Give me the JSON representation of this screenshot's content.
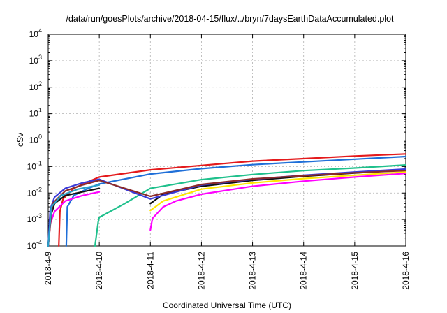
{
  "chart_data": {
    "type": "line",
    "title": "/data/run/goesPlots/archive/2018-04-15/flux/../bryn/7daysEarthDataAccumulated.plot",
    "xlabel": "Coordinated Universal Time (UTC)",
    "ylabel": "cSv",
    "y_scale": "log",
    "ylim": [
      0.0001,
      10000
    ],
    "xlim": [
      "2018-04-09",
      "2018-04-16"
    ],
    "x_tick_labels": [
      "2018-4-9",
      "2018-4-10",
      "2018-4-11",
      "2018-4-12",
      "2018-4-13",
      "2018-4-14",
      "2018-4-15",
      "2018-4-16"
    ],
    "y_tick_labels": [
      {
        "base": "10",
        "exp": "-4"
      },
      {
        "base": "10",
        "exp": "-3"
      },
      {
        "base": "10",
        "exp": "-2"
      },
      {
        "base": "10",
        "exp": "-1"
      },
      {
        "base": "10",
        "exp": "0"
      },
      {
        "base": "10",
        "exp": "1"
      },
      {
        "base": "10",
        "exp": "2"
      },
      {
        "base": "10",
        "exp": "3"
      },
      {
        "base": "10",
        "exp": "4"
      }
    ],
    "grid": true,
    "series": [
      {
        "color": "#e41a1c",
        "points": [
          [
            "2018-04-09 05:00",
            0.0001
          ],
          [
            "2018-04-09 05:30",
            0.002
          ],
          [
            "2018-04-09 07:00",
            0.006
          ],
          [
            "2018-04-09 12:00",
            0.015
          ],
          [
            "2018-04-09 18:00",
            0.025
          ],
          [
            "2018-04-10 00:00",
            0.04
          ],
          [
            "2018-04-11 00:00",
            0.075
          ],
          [
            "2018-04-12 00:00",
            0.11
          ],
          [
            "2018-04-13 00:00",
            0.16
          ],
          [
            "2018-04-14 00:00",
            0.2
          ],
          [
            "2018-04-15 00:00",
            0.25
          ],
          [
            "2018-04-16 00:00",
            0.3
          ]
        ]
      },
      {
        "color": "#1f6fd8",
        "points": [
          [
            "2018-04-09 08:30",
            0.0001
          ],
          [
            "2018-04-09 09:00",
            0.003
          ],
          [
            "2018-04-09 12:00",
            0.008
          ],
          [
            "2018-04-09 18:00",
            0.014
          ],
          [
            "2018-04-10 00:00",
            0.022
          ],
          [
            "2018-04-11 00:00",
            0.052
          ],
          [
            "2018-04-12 00:00",
            0.083
          ],
          [
            "2018-04-13 00:00",
            0.118
          ],
          [
            "2018-04-14 00:00",
            0.15
          ],
          [
            "2018-04-15 00:00",
            0.19
          ],
          [
            "2018-04-16 00:00",
            0.24
          ]
        ]
      },
      {
        "color": "#1fc08c",
        "points": [
          [
            "2018-04-09 22:00",
            0.0001
          ],
          [
            "2018-04-09 23:30",
            0.0008
          ],
          [
            "2018-04-10 00:00",
            0.0012
          ],
          [
            "2018-04-10 12:00",
            0.004
          ],
          [
            "2018-04-11 00:00",
            0.015
          ],
          [
            "2018-04-12 00:00",
            0.032
          ],
          [
            "2018-04-13 00:00",
            0.05
          ],
          [
            "2018-04-14 00:00",
            0.07
          ],
          [
            "2018-04-15 00:00",
            0.088
          ],
          [
            "2018-04-16 00:00",
            0.115
          ]
        ]
      },
      {
        "color": "#111111",
        "points": [
          [
            "2018-04-09 00:00",
            0.0001
          ],
          [
            "2018-04-09 01:00",
            0.0012
          ],
          [
            "2018-04-09 03:00",
            0.004
          ],
          [
            "2018-04-09 08:00",
            0.008
          ],
          [
            "2018-04-09 16:00",
            0.011
          ],
          [
            "2018-04-10 00:00",
            0.015
          ]
        ]
      },
      {
        "color": "#111111",
        "points": [
          [
            "2018-04-11 00:00",
            0.004
          ],
          [
            "2018-04-11 06:00",
            0.009
          ],
          [
            "2018-04-12 00:00",
            0.018
          ],
          [
            "2018-04-13 00:00",
            0.03
          ],
          [
            "2018-04-14 00:00",
            0.043
          ],
          [
            "2018-04-15 00:00",
            0.057
          ],
          [
            "2018-04-16 00:00",
            0.075
          ]
        ]
      },
      {
        "color": "#ff00ff",
        "points": [
          [
            "2018-04-09 00:00",
            0.0001
          ],
          [
            "2018-04-09 01:00",
            0.0007
          ],
          [
            "2018-04-09 03:00",
            0.002
          ],
          [
            "2018-04-09 08:00",
            0.005
          ],
          [
            "2018-04-09 16:00",
            0.008
          ],
          [
            "2018-04-10 00:00",
            0.011
          ]
        ]
      },
      {
        "color": "#ff00ff",
        "points": [
          [
            "2018-04-11 00:00",
            0.0004
          ],
          [
            "2018-04-11 01:00",
            0.0011
          ],
          [
            "2018-04-11 06:00",
            0.003
          ],
          [
            "2018-04-11 12:00",
            0.005
          ],
          [
            "2018-04-12 00:00",
            0.009
          ],
          [
            "2018-04-13 00:00",
            0.018
          ],
          [
            "2018-04-14 00:00",
            0.028
          ],
          [
            "2018-04-15 00:00",
            0.04
          ],
          [
            "2018-04-16 00:00",
            0.055
          ]
        ]
      },
      {
        "color": "#ffe600",
        "points": [
          [
            "2018-04-11 00:00",
            0.0022
          ],
          [
            "2018-04-11 06:00",
            0.005
          ],
          [
            "2018-04-12 00:00",
            0.014
          ],
          [
            "2018-04-13 00:00",
            0.024
          ],
          [
            "2018-04-14 00:00",
            0.035
          ],
          [
            "2018-04-15 00:00",
            0.047
          ],
          [
            "2018-04-16 00:00",
            0.062
          ]
        ]
      },
      {
        "color": "#3a3ad8",
        "points": [
          [
            "2018-04-09 00:00",
            0.0001
          ],
          [
            "2018-04-09 01:00",
            0.0025
          ],
          [
            "2018-04-09 03:00",
            0.007
          ],
          [
            "2018-04-09 08:00",
            0.015
          ],
          [
            "2018-04-09 16:00",
            0.024
          ],
          [
            "2018-04-10 00:00",
            0.033
          ],
          [
            "2018-04-11 00:00",
            0.006
          ],
          [
            "2018-04-12 00:00",
            0.02
          ],
          [
            "2018-04-13 00:00",
            0.033
          ],
          [
            "2018-04-14 00:00",
            0.047
          ],
          [
            "2018-04-15 00:00",
            0.062
          ],
          [
            "2018-04-16 00:00",
            0.08
          ]
        ]
      },
      {
        "color": "#8b2a2a",
        "points": [
          [
            "2018-04-09 00:00",
            0.0001
          ],
          [
            "2018-04-09 02:00",
            0.004
          ],
          [
            "2018-04-09 08:00",
            0.012
          ],
          [
            "2018-04-09 16:00",
            0.02
          ],
          [
            "2018-04-10 00:00",
            0.03
          ],
          [
            "2018-04-11 00:00",
            0.0075
          ],
          [
            "2018-04-12 00:00",
            0.021
          ],
          [
            "2018-04-13 00:00",
            0.034
          ],
          [
            "2018-04-14 00:00",
            0.045
          ],
          [
            "2018-04-15 00:00",
            0.058
          ],
          [
            "2018-04-16 00:00",
            0.07
          ]
        ]
      },
      {
        "color": "#2aa0c8",
        "points": [
          [
            "2018-04-09 00:00",
            0.0001
          ],
          [
            "2018-04-09 01:30",
            0.003
          ],
          [
            "2018-04-09 06:00",
            0.008
          ],
          [
            "2018-04-09 14:00",
            0.014
          ],
          [
            "2018-04-10 00:00",
            0.02
          ]
        ]
      }
    ]
  }
}
